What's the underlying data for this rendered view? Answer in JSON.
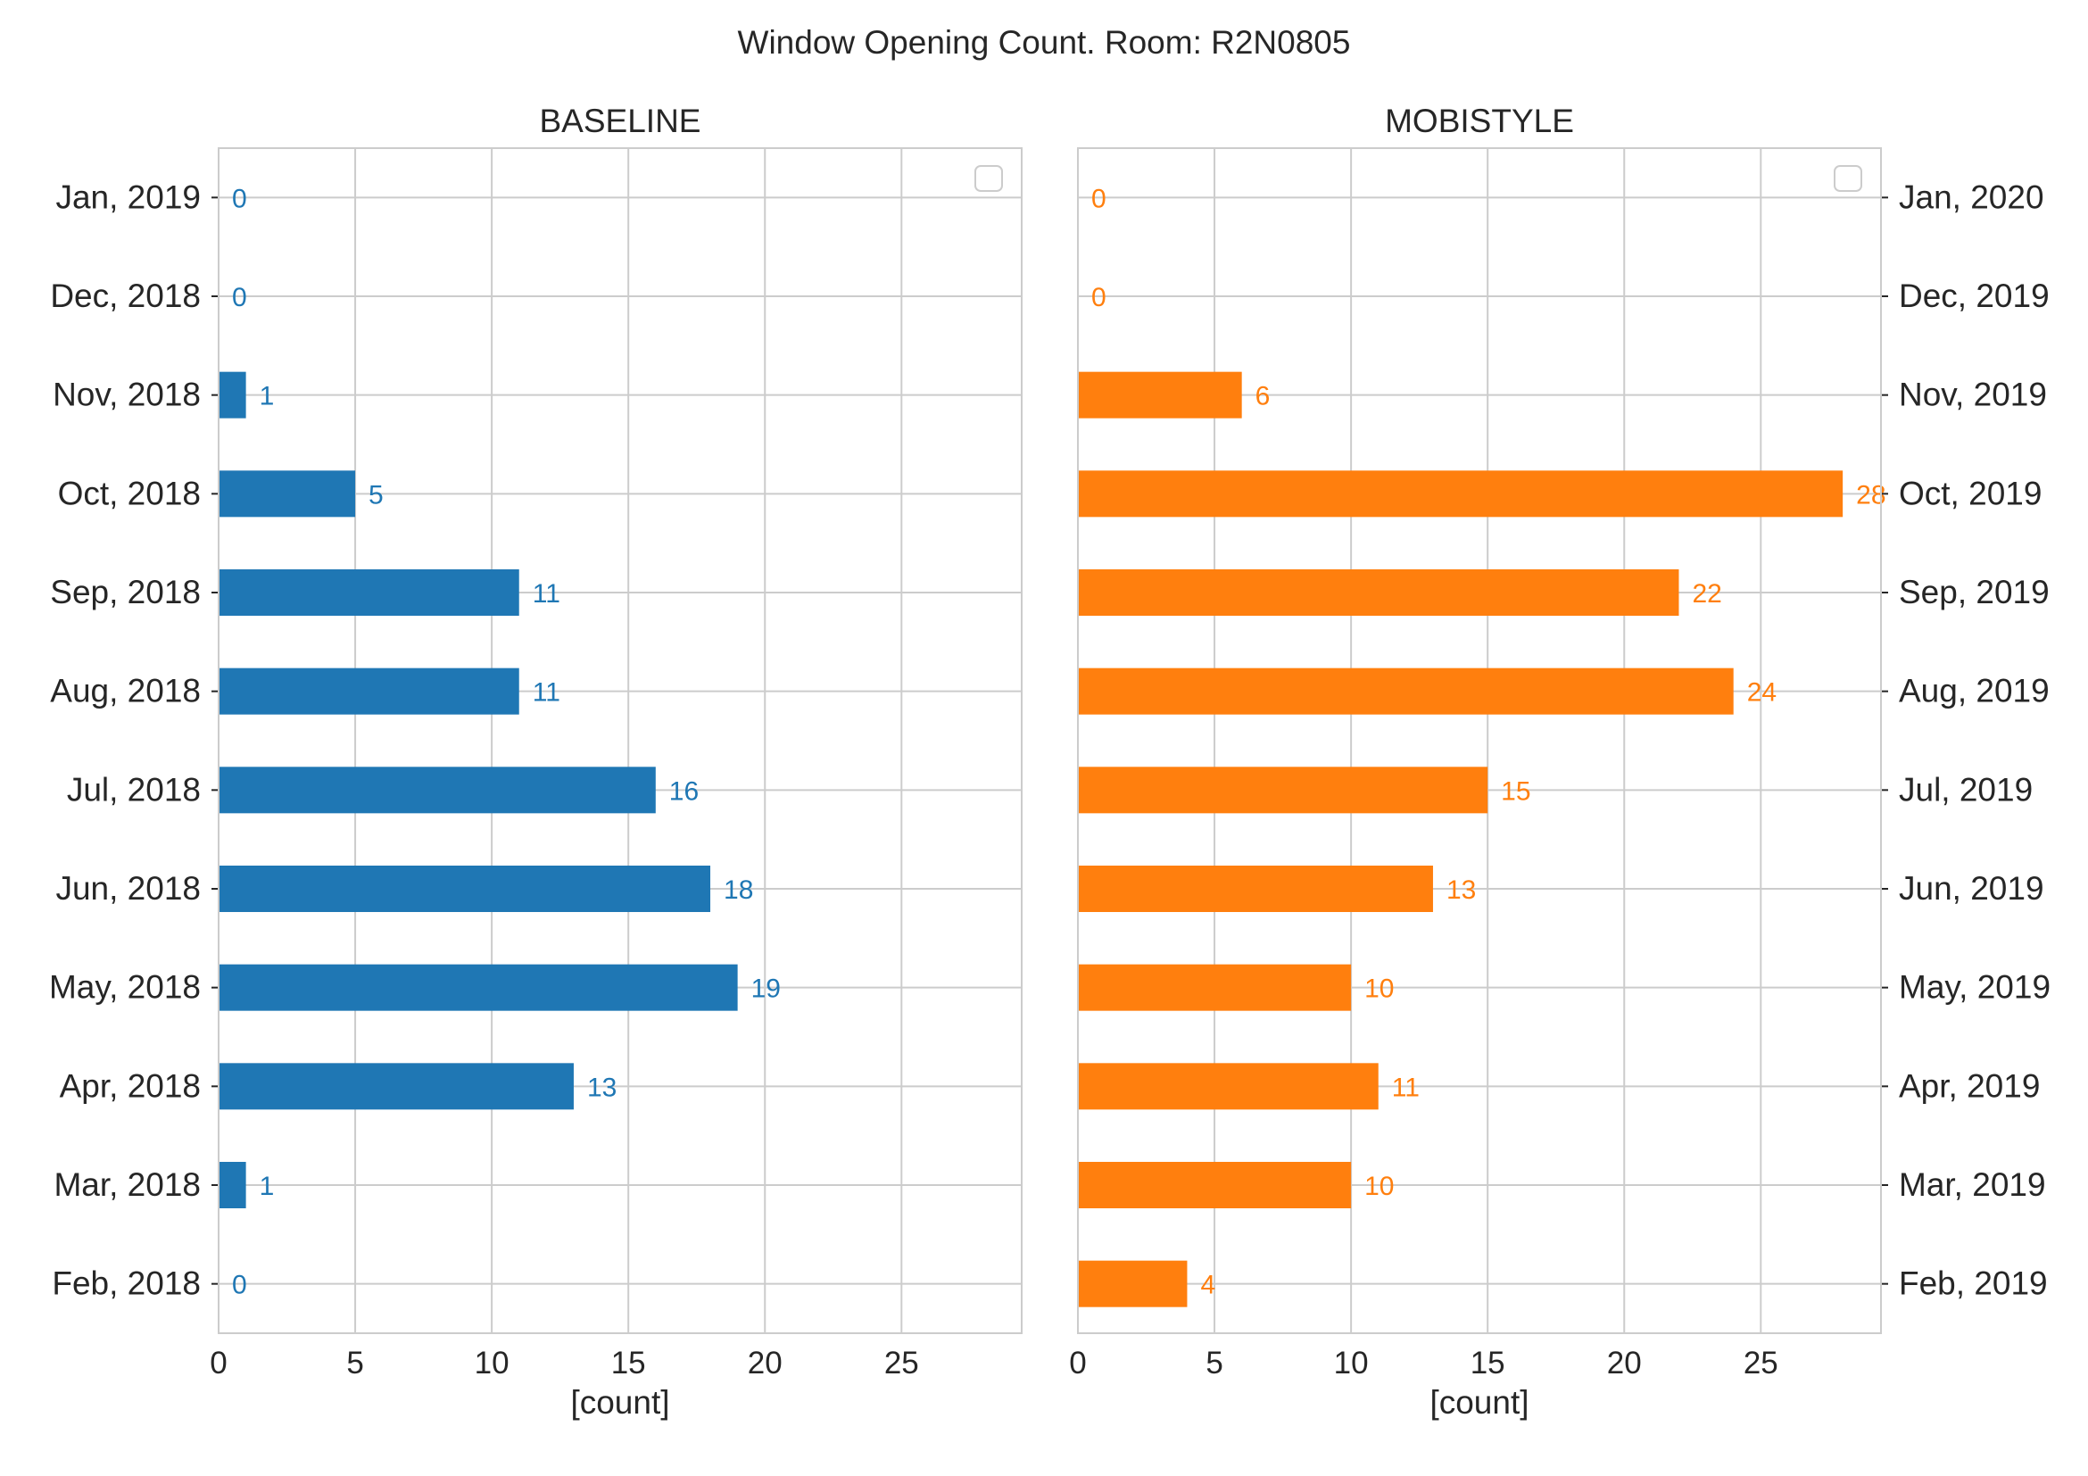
{
  "figure_title": "Window Opening Count. Room: R2N0805",
  "chart_data": [
    {
      "type": "bar",
      "orientation": "horizontal",
      "title": "BASELINE",
      "xlabel": "[count]",
      "ylabel": "",
      "xlim": [
        0,
        29.4
      ],
      "xticks": [
        0,
        5,
        10,
        15,
        20,
        25
      ],
      "grid": true,
      "legend": "top-right (empty)",
      "ytick_side": "left",
      "color": "#1f77b4",
      "categories": [
        "Feb, 2018",
        "Mar, 2018",
        "Apr, 2018",
        "May, 2018",
        "Jun, 2018",
        "Jul, 2018",
        "Aug, 2018",
        "Sep, 2018",
        "Oct, 2018",
        "Nov, 2018",
        "Dec, 2018",
        "Jan, 2019"
      ],
      "values": [
        0,
        1,
        13,
        19,
        18,
        16,
        11,
        11,
        5,
        1,
        0,
        0
      ]
    },
    {
      "type": "bar",
      "orientation": "horizontal",
      "title": "MOBISTYLE",
      "xlabel": "[count]",
      "ylabel": "",
      "xlim": [
        0,
        29.4
      ],
      "xticks": [
        0,
        5,
        10,
        15,
        20,
        25
      ],
      "grid": true,
      "legend": "top-right (empty)",
      "ytick_side": "right",
      "color": "#ff7f0e",
      "categories": [
        "Feb, 2019",
        "Mar, 2019",
        "Apr, 2019",
        "May, 2019",
        "Jun, 2019",
        "Jul, 2019",
        "Aug, 2019",
        "Sep, 2019",
        "Oct, 2019",
        "Nov, 2019",
        "Dec, 2019",
        "Jan, 2020"
      ],
      "values": [
        4,
        10,
        11,
        10,
        13,
        15,
        24,
        22,
        28,
        6,
        0,
        0
      ]
    }
  ]
}
